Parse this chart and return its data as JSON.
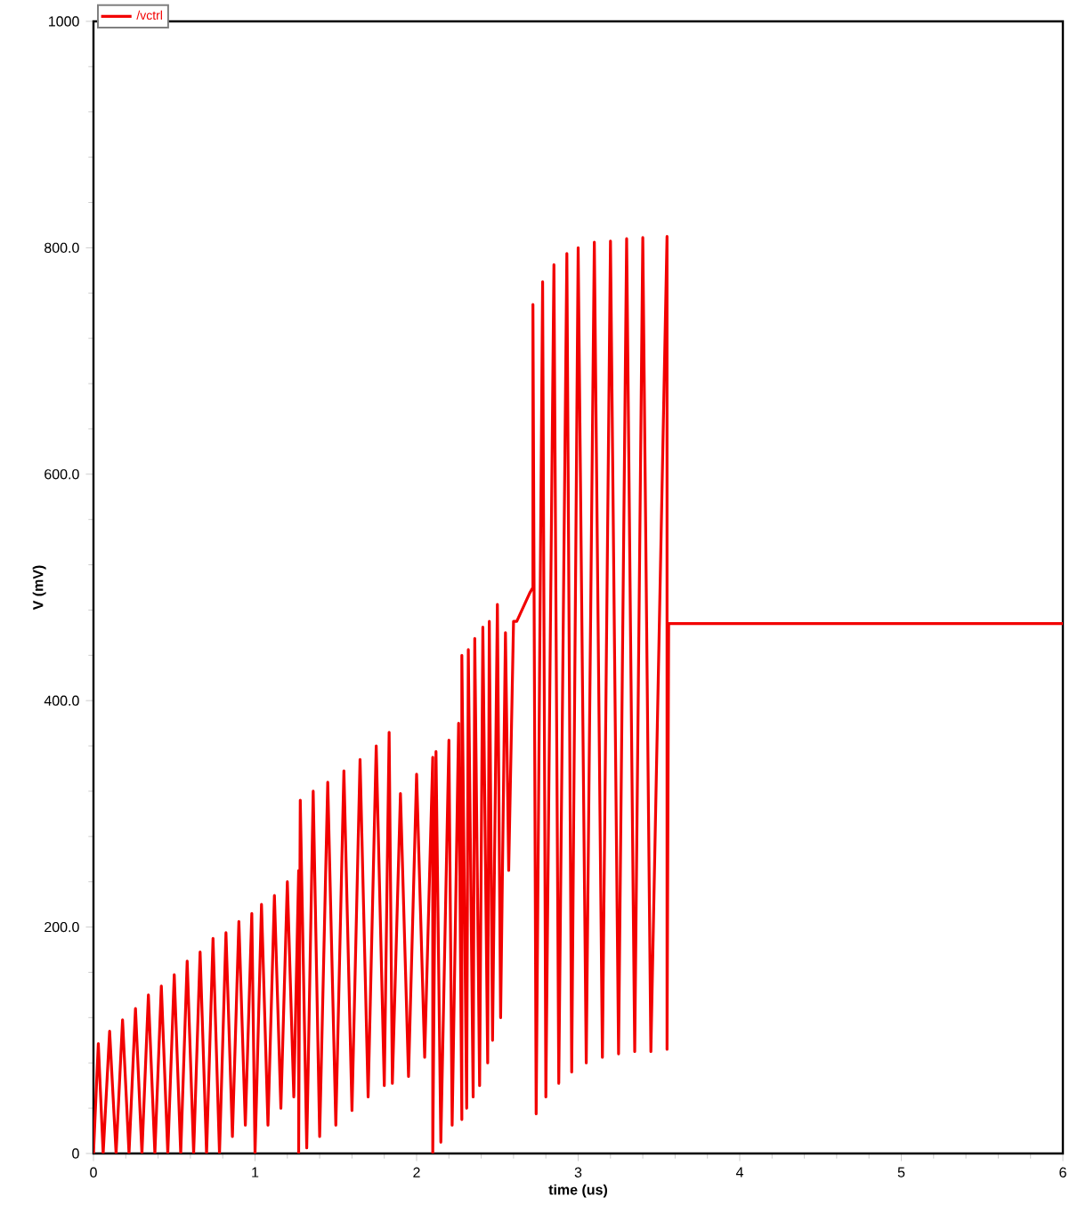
{
  "chart_data": {
    "type": "line",
    "xlabel": "time (us)",
    "ylabel": "V (mV)",
    "xlim": [
      0,
      6
    ],
    "ylim": [
      0,
      1000
    ],
    "xticks": [
      0,
      1,
      2,
      3,
      4,
      5,
      6
    ],
    "yticks": [
      0,
      {
        "value": 200,
        "label": "200.0"
      },
      {
        "value": 400,
        "label": "400.0"
      },
      {
        "value": 600,
        "label": "600.0"
      },
      {
        "value": 800,
        "label": "800.0"
      },
      1000
    ],
    "legend": "top left",
    "line_style": "solid",
    "series": [
      {
        "name": "/vctrl",
        "color": "#f20000",
        "x": [
          0,
          0.03,
          0.06,
          0.1,
          0.14,
          0.18,
          0.22,
          0.26,
          0.3,
          0.34,
          0.38,
          0.42,
          0.46,
          0.5,
          0.54,
          0.58,
          0.62,
          0.66,
          0.7,
          0.74,
          0.78,
          0.82,
          0.86,
          0.9,
          0.94,
          0.98,
          1.0,
          1.04,
          1.08,
          1.12,
          1.16,
          1.2,
          1.24,
          1.27,
          1.27,
          1.28,
          1.32,
          1.36,
          1.4,
          1.45,
          1.5,
          1.55,
          1.6,
          1.65,
          1.7,
          1.75,
          1.8,
          1.83,
          1.85,
          1.9,
          1.95,
          2.0,
          2.05,
          2.1,
          2.1,
          2.12,
          2.15,
          2.2,
          2.22,
          2.26,
          2.28,
          2.28,
          2.31,
          2.32,
          2.35,
          2.36,
          2.39,
          2.41,
          2.44,
          2.45,
          2.47,
          2.5,
          2.52,
          2.55,
          2.57,
          2.6,
          2.62,
          2.7,
          2.72,
          2.72,
          2.74,
          2.78,
          2.8,
          2.85,
          2.88,
          2.93,
          2.96,
          3.0,
          3.05,
          3.1,
          3.15,
          3.2,
          3.25,
          3.3,
          3.35,
          3.4,
          3.45,
          3.55,
          3.55,
          3.56,
          6.0
        ],
        "values": [
          0,
          97,
          0,
          108,
          0,
          118,
          0,
          128,
          0,
          140,
          0,
          148,
          0,
          158,
          0,
          170,
          0,
          178,
          0,
          190,
          0,
          195,
          15,
          205,
          25,
          212,
          0,
          220,
          25,
          228,
          40,
          240,
          50,
          250,
          0,
          312,
          5,
          320,
          15,
          328,
          25,
          338,
          38,
          348,
          50,
          360,
          60,
          372,
          62,
          318,
          68,
          335,
          85,
          350,
          0,
          355,
          10,
          365,
          25,
          380,
          30,
          440,
          40,
          445,
          50,
          455,
          60,
          465,
          80,
          470,
          100,
          485,
          120,
          460,
          250,
          470,
          470,
          495,
          500,
          750,
          35,
          770,
          50,
          785,
          62,
          795,
          72,
          800,
          80,
          805,
          85,
          806,
          88,
          808,
          90,
          809,
          90,
          810,
          92,
          468,
          468
        ]
      }
    ]
  }
}
